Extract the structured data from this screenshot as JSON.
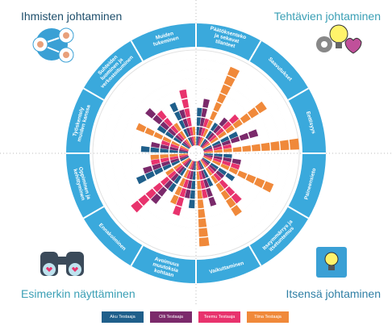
{
  "chart_data": {
    "type": "polar_bar",
    "quadrant_titles": [
      "Ihmisten johtaminen",
      "Tehtävien johtaminen",
      "Esimerkin näyttäminen",
      "Itsensä johtaminen"
    ],
    "categories": [
      "Päätöksenteko ja sekavat tilanteet",
      "Saavutukset",
      "Eettisyys",
      "Paineensieto",
      "Itseymmärrys ja itsetuntemus",
      "Vaikuttaminen",
      "Avoimuus muutoksia kohtaan",
      "Ennakoiminen",
      "Oppiminen ja kehittyminen",
      "Työskentely muiden kanssa",
      "Suhteiden luominen ja verkostoituminen",
      "Muiden tukeminen"
    ],
    "series": [
      {
        "name": "Aku Testaaja",
        "color": "#1f5f8b",
        "values": [
          4,
          3,
          4,
          3,
          4,
          3,
          5,
          4,
          6,
          5,
          4,
          5
        ]
      },
      {
        "name": "Olli Testaaja",
        "color": "#7b2a6b",
        "values": [
          5,
          4,
          6,
          4,
          3,
          5,
          4,
          6,
          5,
          4,
          6,
          4
        ]
      },
      {
        "name": "Teemu Testaaja",
        "color": "#e8336d",
        "values": [
          3,
          5,
          3,
          4,
          6,
          4,
          6,
          8,
          4,
          3,
          5,
          6
        ]
      },
      {
        "name": "Tiina Testaaja",
        "color": "#f0893a",
        "values": [
          9,
          8,
          10,
          8,
          7,
          9,
          5,
          3,
          4,
          6,
          3,
          2
        ]
      }
    ],
    "ylim": [
      0,
      10
    ],
    "grid": true
  }
}
